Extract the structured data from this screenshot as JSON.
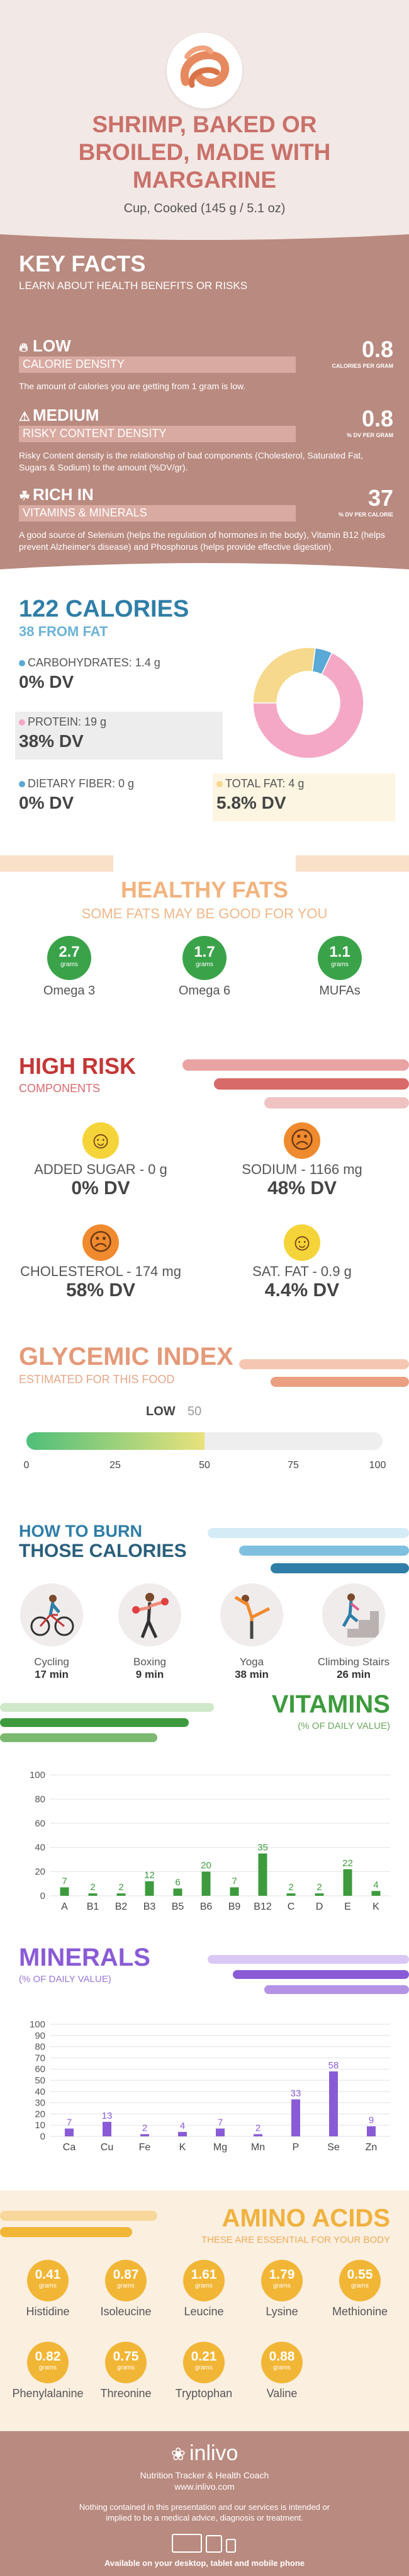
{
  "header": {
    "title": "SHRIMP, BAKED OR BROILED, MADE WITH MARGARINE",
    "serving": "Cup, Cooked (145 g / 5.1 oz)",
    "icon": "shrimp-plate-icon"
  },
  "key_facts": {
    "title": "KEY FACTS",
    "subtitle": "LEARN ABOUT HEALTH BENEFITS OR RISKS",
    "rows": [
      {
        "level": "LOW",
        "category": "CALORIE DENSITY",
        "value": "0.8",
        "unit": "CALORIES PER GRAM",
        "icon": "flame-icon",
        "description": "The amount of calories you are getting from 1 gram is low."
      },
      {
        "level": "MEDIUM",
        "category": "RISKY CONTENT DENSITY",
        "value": "0.8",
        "unit": "% DV PER GRAM",
        "icon": "warning-icon",
        "description": "Risky Content density is the relationship of bad components (Cholesterol, Saturated Fat, Sugars & Sodium) to the amount (%DV/gr)."
      },
      {
        "level": "RICH  IN",
        "category": "VITAMINS & MINERALS",
        "value": "37",
        "unit": "% DV PER CALORIE",
        "icon": "leaf-icon",
        "description": "A good source of Selenium (helps the regulation of hormones in the body), Vitamin B12 (helps prevent Alzheimer's disease) and Phosphorus (helps provide effective digestion)."
      }
    ]
  },
  "calories": {
    "title": "122 CALORIES",
    "subtitle": "38 FROM FAT",
    "nutrients": [
      {
        "label": "CARBOHYDRATES: 1.4 g",
        "dv": "0% DV",
        "color": "#5aa9d6"
      },
      {
        "label": "PROTEIN: 19 g",
        "dv": "38% DV",
        "color": "#f4a8c6"
      },
      {
        "label": "DIETARY FIBER: 0 g",
        "dv": "0% DV",
        "color": "#5aa9d6"
      },
      {
        "label": "TOTAL FAT: 4 g",
        "dv": "5.8% DV",
        "color": "#f6d98c"
      }
    ],
    "donut": [
      {
        "name": "carbohydrates",
        "value": 5,
        "color": "#5aa9d6"
      },
      {
        "name": "protein",
        "value": 68,
        "color": "#f4a8c6"
      },
      {
        "name": "fat",
        "value": 27,
        "color": "#f6d98c"
      }
    ]
  },
  "healthy_fats": {
    "title": "HEALTHY FATS",
    "subtitle": "SOME FATS MAY BE GOOD FOR YOU",
    "unit": "grams",
    "items": [
      {
        "name": "Omega 3",
        "value": "2.7"
      },
      {
        "name": "Omega 6",
        "value": "1.7"
      },
      {
        "name": "MUFAs",
        "value": "1.1"
      }
    ]
  },
  "high_risk": {
    "title": "HIGH RISK",
    "subtitle": "COMPONENTS",
    "items": [
      {
        "name": "ADDED SUGAR - 0 g",
        "dv": "0% DV",
        "face": "☺",
        "color": "#f5d43a"
      },
      {
        "name": "SODIUM - 1166 mg",
        "dv": "48% DV",
        "face": "☹",
        "color": "#f08a2e"
      },
      {
        "name": "CHOLESTEROL - 174 mg",
        "dv": "58% DV",
        "face": "☹",
        "color": "#f08a2e"
      },
      {
        "name": "SAT. FAT - 0.9 g",
        "dv": "4.4% DV",
        "face": "☺",
        "color": "#f5d43a"
      }
    ]
  },
  "glycemic": {
    "title": "GLYCEMIC INDEX",
    "subtitle": "ESTIMATED FOR THIS FOOD",
    "level": "LOW",
    "value": 50,
    "ticks": [
      "0",
      "25",
      "50",
      "75",
      "100"
    ]
  },
  "burn": {
    "title1": "HOW TO BURN",
    "title2": "THOSE CALORIES",
    "activities": [
      {
        "name": "Cycling",
        "minutes": "17 min",
        "icon": "cycling-icon"
      },
      {
        "name": "Boxing",
        "minutes": "9 min",
        "icon": "boxing-icon"
      },
      {
        "name": "Yoga",
        "minutes": "38 min",
        "icon": "yoga-icon"
      },
      {
        "name": "Climbing Stairs",
        "minutes": "26 min",
        "icon": "stairs-icon"
      }
    ]
  },
  "vitamins": {
    "title": "VITAMINS",
    "subtitle": "(% OF DAILY VALUE)"
  },
  "minerals": {
    "title": "MINERALS",
    "subtitle": "(% OF DAILY VALUE)"
  },
  "chart_data": [
    {
      "type": "bar",
      "title": "VITAMINS",
      "subtitle": "(% OF DAILY VALUE)",
      "categories": [
        "A",
        "B1",
        "B2",
        "B3",
        "B5",
        "B6",
        "B9",
        "B12",
        "C",
        "D",
        "E",
        "K"
      ],
      "values": [
        7,
        2,
        2,
        12,
        6,
        20,
        7,
        35,
        2,
        2,
        22,
        4
      ],
      "yticks": [
        "0",
        "20",
        "40",
        "60",
        "80",
        "100"
      ],
      "ylim": [
        0,
        100
      ],
      "color": "#3d9b3d"
    },
    {
      "type": "bar",
      "title": "MINERALS",
      "subtitle": "(% OF DAILY VALUE)",
      "categories": [
        "Ca",
        "Cu",
        "Fe",
        "K",
        "Mg",
        "Mn",
        "P",
        "Se",
        "Zn"
      ],
      "values": [
        7,
        13,
        2,
        4,
        7,
        2,
        33,
        58,
        9
      ],
      "yticks": [
        "0",
        "10",
        "20",
        "30",
        "40",
        "50",
        "60",
        "70",
        "80",
        "90",
        "100"
      ],
      "ylim": [
        0,
        100
      ],
      "color": "#8a5bd6"
    }
  ],
  "amino": {
    "title": "AMINO ACIDS",
    "subtitle": "THESE ARE ESSENTIAL FOR YOUR BODY",
    "unit": "grams",
    "items": [
      {
        "name": "Histidine",
        "value": "0.41"
      },
      {
        "name": "Isoleucine",
        "value": "0.87"
      },
      {
        "name": "Leucine",
        "value": "1.61"
      },
      {
        "name": "Lysine",
        "value": "1.79"
      },
      {
        "name": "Methionine",
        "value": "0.55"
      },
      {
        "name": "Phenylalanine",
        "value": "0.82"
      },
      {
        "name": "Threonine",
        "value": "0.75"
      },
      {
        "name": "Tryptophan",
        "value": "0.21"
      },
      {
        "name": "Valine",
        "value": "0.88"
      }
    ]
  },
  "footer": {
    "brand": "inlivo",
    "tagline": "Nutrition Tracker & Health Coach",
    "website": "www.inlivo.com",
    "disclaimer": "Nothing contained in this presentation and our services is intended or implied to be a medical advice, diagnosis or treatment.",
    "availability": "Available on your desktop, tablet and mobile phone"
  }
}
